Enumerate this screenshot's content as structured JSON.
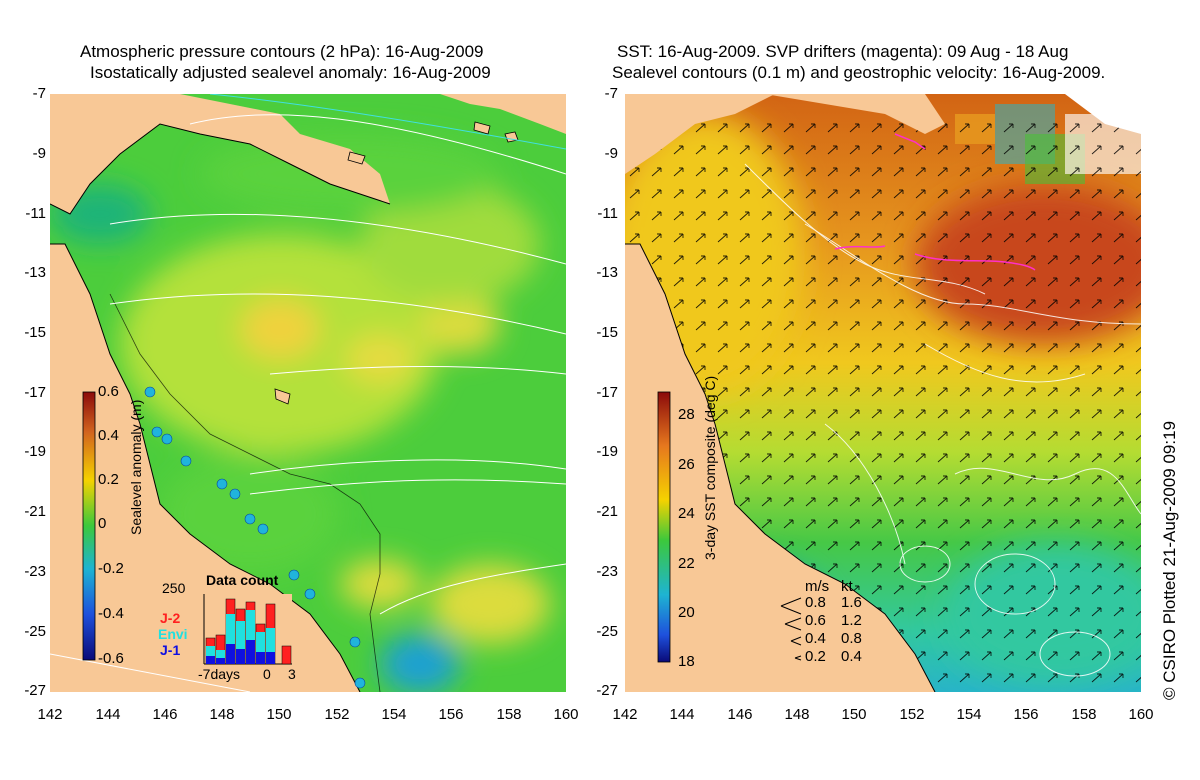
{
  "left": {
    "title_line1": "Atmospheric pressure contours (2 hPa): 16-Aug-2009",
    "title_line2": "Isostatically adjusted sealevel anomaly: 16-Aug-2009",
    "colorbar_label": "Sealevel anomaly (m)",
    "colorbar_ticks": [
      "0.6",
      "0.4",
      "0.2",
      "0",
      "-0.2",
      "-0.4",
      "-0.6"
    ],
    "data_count": {
      "title": "Data count",
      "max_label": "250",
      "x_labels": [
        "-7days",
        "0",
        "3"
      ],
      "legend": [
        {
          "name": "J-2",
          "color": "#ff2020"
        },
        {
          "name": "Envi",
          "color": "#20e0e0"
        },
        {
          "name": "J-1",
          "color": "#1010e0"
        }
      ]
    }
  },
  "right": {
    "title_line1": "SST: 16-Aug-2009. SVP drifters (magenta): 09 Aug - 18 Aug",
    "title_line2": "Sealevel contours (0.1 m) and geostrophic velocity: 16-Aug-2009.",
    "colorbar_label": "3-day SST composite (deg C)",
    "colorbar_ticks": [
      "28",
      "26",
      "24",
      "22",
      "20",
      "18"
    ],
    "velocity_legend": {
      "header_ms": "m/s",
      "header_kt": "kt",
      "rows": [
        {
          "ms": "0.8",
          "kt": "1.6"
        },
        {
          "ms": "0.6",
          "kt": "1.2"
        },
        {
          "ms": "0.4",
          "kt": "0.8"
        },
        {
          "ms": "0.2",
          "kt": "0.4"
        }
      ]
    }
  },
  "axes": {
    "y_ticks": [
      "-7",
      "-9",
      "-11",
      "-13",
      "-15",
      "-17",
      "-19",
      "-21",
      "-23",
      "-25",
      "-27"
    ],
    "x_ticks": [
      "142",
      "144",
      "146",
      "148",
      "150",
      "152",
      "154",
      "156",
      "158",
      "160"
    ]
  },
  "copyright": "© CSIRO Plotted 21-Aug-2009 09:19",
  "colors": {
    "land": "#f8c896",
    "ocean_green": "#5ad23c",
    "ocean_yellow": "#c8e632",
    "ocean_orange": "#e67818",
    "ocean_cyan": "#28b4c8"
  }
}
